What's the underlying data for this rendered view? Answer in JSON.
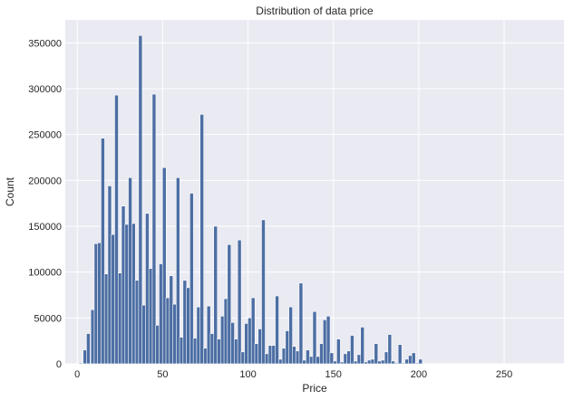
{
  "chart_data": {
    "type": "bar",
    "title": "Distribution of data price",
    "xlabel": "Price",
    "ylabel": "Count",
    "xlim": [
      -7,
      285
    ],
    "ylim": [
      0,
      375000
    ],
    "xticks": [
      0,
      50,
      100,
      150,
      200,
      250
    ],
    "yticks": [
      0,
      50000,
      100000,
      150000,
      200000,
      250000,
      300000,
      350000
    ],
    "ytick_labels": [
      "0",
      "50000",
      "100000",
      "150000",
      "200000",
      "250000",
      "300000",
      "350000"
    ],
    "grid": true,
    "bin_width": 2.14,
    "bar_color": "#4c6ea3",
    "background_color": "#eaeaf2",
    "bins": [
      [
        2,
        1000
      ],
      [
        4.5,
        15000
      ],
      [
        6.5,
        33000
      ],
      [
        9,
        59000
      ],
      [
        11,
        131000
      ],
      [
        13,
        132000
      ],
      [
        15,
        246000
      ],
      [
        17,
        98000
      ],
      [
        19,
        194000
      ],
      [
        21,
        141000
      ],
      [
        23,
        293000
      ],
      [
        25,
        99000
      ],
      [
        27,
        172000
      ],
      [
        29,
        152000
      ],
      [
        31,
        203000
      ],
      [
        33,
        153000
      ],
      [
        35,
        91000
      ],
      [
        37,
        358000
      ],
      [
        39,
        64000
      ],
      [
        41,
        164000
      ],
      [
        43,
        104000
      ],
      [
        45,
        294000
      ],
      [
        47,
        42000
      ],
      [
        49,
        109000
      ],
      [
        51,
        214000
      ],
      [
        53,
        72000
      ],
      [
        55,
        96000
      ],
      [
        57,
        65000
      ],
      [
        59,
        203000
      ],
      [
        61,
        29000
      ],
      [
        63,
        91000
      ],
      [
        65,
        83000
      ],
      [
        67,
        186000
      ],
      [
        69,
        28000
      ],
      [
        71,
        62000
      ],
      [
        73,
        272000
      ],
      [
        75,
        17000
      ],
      [
        77,
        63000
      ],
      [
        79,
        33000
      ],
      [
        81,
        150000
      ],
      [
        83,
        27000
      ],
      [
        85,
        52000
      ],
      [
        87,
        71000
      ],
      [
        89,
        130000
      ],
      [
        91,
        45000
      ],
      [
        93,
        27000
      ],
      [
        95,
        135000
      ],
      [
        97,
        13000
      ],
      [
        99,
        44000
      ],
      [
        101,
        50000
      ],
      [
        103,
        72000
      ],
      [
        105,
        22000
      ],
      [
        107,
        38000
      ],
      [
        109,
        157000
      ],
      [
        111,
        11000
      ],
      [
        113,
        20000
      ],
      [
        115,
        20000
      ],
      [
        117,
        74000
      ],
      [
        119,
        5000
      ],
      [
        121,
        17000
      ],
      [
        123,
        36000
      ],
      [
        125,
        62000
      ],
      [
        127,
        19000
      ],
      [
        129,
        14000
      ],
      [
        131,
        88000
      ],
      [
        133,
        4000
      ],
      [
        135,
        15000
      ],
      [
        137,
        8000
      ],
      [
        139,
        57000
      ],
      [
        141,
        8000
      ],
      [
        143,
        22000
      ],
      [
        145,
        48000
      ],
      [
        147,
        52000
      ],
      [
        149,
        12000
      ],
      [
        151,
        3000
      ],
      [
        153,
        27000
      ],
      [
        155,
        2000
      ],
      [
        157,
        11000
      ],
      [
        159,
        14000
      ],
      [
        161,
        31000
      ],
      [
        163,
        3000
      ],
      [
        165,
        10000
      ],
      [
        167,
        40000
      ],
      [
        169,
        2000
      ],
      [
        171,
        4000
      ],
      [
        173,
        5000
      ],
      [
        175,
        22000
      ],
      [
        177,
        3000
      ],
      [
        179,
        4000
      ],
      [
        181,
        13000
      ],
      [
        183,
        32000
      ],
      [
        185,
        3000
      ],
      [
        187,
        1000
      ],
      [
        189,
        21000
      ],
      [
        191,
        1000
      ],
      [
        193,
        5000
      ],
      [
        195,
        9000
      ],
      [
        197,
        12000
      ],
      [
        199,
        1000
      ],
      [
        201,
        5000
      ]
    ]
  }
}
